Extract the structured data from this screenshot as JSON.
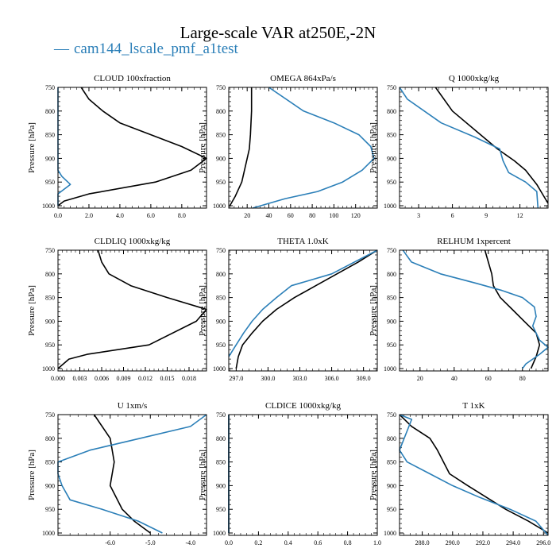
{
  "figure": {
    "title": "Large-scale VAR at250E,-2N",
    "legend": {
      "marker": "—",
      "label": "cam144_lscale_pmf_a1test"
    },
    "colors": {
      "model": "#2b7fb8",
      "obs": "#000000",
      "axis": "#000000"
    },
    "ylabel": "Pressure [hPa]",
    "yticks": [
      750,
      800,
      850,
      900,
      950,
      1000
    ],
    "ylim": [
      750,
      1005
    ]
  },
  "chart_data": [
    {
      "type": "line",
      "title": "CLOUD  100xfraction",
      "ylabel": "Pressure [hPa]",
      "xlim": [
        0,
        9.6
      ],
      "xticks": [
        "0.0",
        "2.0",
        "4.0",
        "6.0",
        "8.0"
      ],
      "xtick_values": [
        0,
        2,
        4,
        6,
        8
      ],
      "ylim": [
        750,
        1005
      ],
      "series": [
        {
          "color": "#000000",
          "points": [
            [
              1.5,
              750
            ],
            [
              2.0,
              775
            ],
            [
              2.9,
              800
            ],
            [
              4.0,
              825
            ],
            [
              6.0,
              850
            ],
            [
              8.0,
              875
            ],
            [
              9.6,
              900
            ],
            [
              8.6,
              925
            ],
            [
              6.3,
              950
            ],
            [
              2.0,
              975
            ],
            [
              0.4,
              990
            ],
            [
              0.0,
              1000
            ]
          ]
        },
        {
          "color": "#2b7fb8",
          "points": [
            [
              0.0,
              750
            ],
            [
              0.0,
              925
            ],
            [
              0.25,
              938
            ],
            [
              0.8,
              955
            ],
            [
              0.2,
              970
            ],
            [
              0.0,
              975
            ],
            [
              0.0,
              1000
            ]
          ]
        }
      ]
    },
    {
      "type": "line",
      "title": "OMEGA  864xPa/s",
      "ylabel": "Pressure [hPa]",
      "xlim": [
        3,
        140
      ],
      "xticks": [
        "20",
        "40",
        "60",
        "80",
        "100",
        "120"
      ],
      "xtick_values": [
        20,
        40,
        60,
        80,
        100,
        120
      ],
      "ylim": [
        750,
        1005
      ],
      "series": [
        {
          "color": "#000000",
          "points": [
            [
              24,
              750
            ],
            [
              24,
              800
            ],
            [
              23,
              850
            ],
            [
              22,
              880
            ],
            [
              20,
              900
            ],
            [
              15,
              950
            ],
            [
              9,
              980
            ],
            [
              4,
              1000
            ]
          ]
        },
        {
          "color": "#2b7fb8",
          "points": [
            [
              40,
              750
            ],
            [
              72,
              800
            ],
            [
              100,
              825
            ],
            [
              123,
              850
            ],
            [
              134,
              875
            ],
            [
              137,
              900
            ],
            [
              126,
              925
            ],
            [
              108,
              950
            ],
            [
              85,
              970
            ],
            [
              55,
              985
            ],
            [
              25,
              1005
            ]
          ]
        }
      ]
    },
    {
      "type": "line",
      "title": "Q  1000xkg/kg",
      "ylabel": "Pressure [hPa]",
      "xlim": [
        1.3,
        14.5
      ],
      "xticks": [
        "3",
        "6",
        "9",
        "12"
      ],
      "xtick_values": [
        3,
        6,
        9,
        12
      ],
      "ylim": [
        750,
        1005
      ],
      "series": [
        {
          "color": "#000000",
          "points": [
            [
              4.5,
              750
            ],
            [
              6.0,
              800
            ],
            [
              8.5,
              850
            ],
            [
              10.0,
              880
            ],
            [
              11.5,
              905
            ],
            [
              12.5,
              925
            ],
            [
              13.5,
              955
            ],
            [
              14.0,
              975
            ],
            [
              14.5,
              995
            ]
          ]
        },
        {
          "color": "#2b7fb8",
          "points": [
            [
              1.3,
              750
            ],
            [
              2.0,
              775
            ],
            [
              5.0,
              825
            ],
            [
              8.0,
              855
            ],
            [
              10.2,
              880
            ],
            [
              10.5,
              905
            ],
            [
              11.0,
              930
            ],
            [
              12.5,
              950
            ],
            [
              13.5,
              970
            ],
            [
              13.6,
              1005
            ]
          ]
        }
      ]
    },
    {
      "type": "line",
      "title": "CLDLIQ  1000xkg/kg",
      "ylabel": "Pressure [hPa]",
      "xlim": [
        0,
        0.0204
      ],
      "xticks": [
        "0.000",
        "0.003",
        "0.006",
        "0.009",
        "0.012",
        "0.015",
        "0.018"
      ],
      "xtick_values": [
        0,
        0.003,
        0.006,
        0.009,
        0.012,
        0.015,
        0.018
      ],
      "ylim": [
        750,
        1005
      ],
      "series": [
        {
          "color": "#000000",
          "points": [
            [
              0.0055,
              750
            ],
            [
              0.006,
              775
            ],
            [
              0.007,
              800
            ],
            [
              0.01,
              825
            ],
            [
              0.015,
              850
            ],
            [
              0.0204,
              875
            ],
            [
              0.019,
              900
            ],
            [
              0.0125,
              950
            ],
            [
              0.004,
              970
            ],
            [
              0.0015,
              980
            ],
            [
              0.0,
              1000
            ]
          ]
        }
      ]
    },
    {
      "type": "line",
      "title": "THETA  1.0xK",
      "ylabel": "Pressure [hPa]",
      "xlim": [
        296.3,
        310.3
      ],
      "xticks": [
        "297.0",
        "300.0",
        "303.0",
        "306.0",
        "309.0"
      ],
      "xtick_values": [
        297,
        300,
        303,
        306,
        309
      ],
      "ylim": [
        750,
        1005
      ],
      "series": [
        {
          "color": "#000000",
          "points": [
            [
              310.3,
              750
            ],
            [
              308.5,
              775
            ],
            [
              306.5,
              800
            ],
            [
              304.5,
              825
            ],
            [
              302.5,
              850
            ],
            [
              300.8,
              875
            ],
            [
              299.5,
              900
            ],
            [
              298.5,
              925
            ],
            [
              297.6,
              950
            ],
            [
              297.2,
              975
            ],
            [
              297.0,
              1000
            ]
          ]
        },
        {
          "color": "#2b7fb8",
          "points": [
            [
              310.3,
              750
            ],
            [
              306.0,
              800
            ],
            [
              302.2,
              825
            ],
            [
              300.8,
              850
            ],
            [
              299.5,
              875
            ],
            [
              298.5,
              900
            ],
            [
              297.7,
              925
            ],
            [
              297.0,
              950
            ],
            [
              296.3,
              975
            ]
          ]
        }
      ]
    },
    {
      "type": "line",
      "title": "RELHUM  1xpercent",
      "ylabel": "Pressure [hPa]",
      "xlim": [
        8,
        95
      ],
      "xticks": [
        "20",
        "40",
        "60",
        "80"
      ],
      "xtick_values": [
        20,
        40,
        60,
        80
      ],
      "ylim": [
        750,
        1005
      ],
      "series": [
        {
          "color": "#000000",
          "points": [
            [
              58,
              750
            ],
            [
              60,
              775
            ],
            [
              62,
              800
            ],
            [
              63,
              825
            ],
            [
              67,
              850
            ],
            [
              74,
              875
            ],
            [
              81,
              900
            ],
            [
              88,
              925
            ],
            [
              90,
              950
            ],
            [
              88,
              975
            ],
            [
              85,
              1000
            ]
          ]
        },
        {
          "color": "#2b7fb8",
          "points": [
            [
              10,
              750
            ],
            [
              15,
              775
            ],
            [
              32,
              800
            ],
            [
              53,
              820
            ],
            [
              68,
              835
            ],
            [
              80,
              850
            ],
            [
              87,
              870
            ],
            [
              88,
              890
            ],
            [
              86,
              910
            ],
            [
              88,
              925
            ],
            [
              90,
              940
            ],
            [
              95,
              955
            ],
            [
              90,
              970
            ],
            [
              82,
              990
            ],
            [
              80,
              1000
            ]
          ]
        }
      ]
    },
    {
      "type": "line",
      "title": "U  1xm/s",
      "ylabel": "Pressure [hPa]",
      "xlim": [
        -7.3,
        -3.6
      ],
      "xticks": [
        "-6.0",
        "-5.0",
        "-4.0"
      ],
      "xtick_values": [
        -6,
        -5,
        -4
      ],
      "ylim": [
        750,
        1005
      ],
      "series": [
        {
          "color": "#000000",
          "points": [
            [
              -6.4,
              750
            ],
            [
              -6.0,
              800
            ],
            [
              -5.9,
              850
            ],
            [
              -6.0,
              900
            ],
            [
              -5.7,
              950
            ],
            [
              -5.4,
              975
            ],
            [
              -5.0,
              1000
            ]
          ]
        },
        {
          "color": "#2b7fb8",
          "points": [
            [
              -3.6,
              750
            ],
            [
              -4.0,
              775
            ],
            [
              -5.5,
              805
            ],
            [
              -6.5,
              825
            ],
            [
              -7.3,
              850
            ],
            [
              -7.3,
              875
            ],
            [
              -7.2,
              900
            ],
            [
              -7.0,
              930
            ],
            [
              -6.2,
              950
            ],
            [
              -5.3,
              975
            ],
            [
              -4.7,
              1000
            ]
          ]
        }
      ]
    },
    {
      "type": "line",
      "title": "CLDICE  1000xkg/kg",
      "ylabel": "Pressure [hPa]",
      "xlim": [
        0,
        1.0
      ],
      "xticks": [
        "0.0",
        "0.2",
        "0.4",
        "0.6",
        "0.8",
        "1.0"
      ],
      "xtick_values": [
        0,
        0.2,
        0.4,
        0.6,
        0.8,
        1.0
      ],
      "ylim": [
        750,
        1005
      ],
      "series": [
        {
          "color": "#000000",
          "points": [
            [
              0.0,
              750
            ],
            [
              0.0,
              1000
            ]
          ]
        },
        {
          "color": "#2b7fb8",
          "points": [
            [
              0.0,
              750
            ],
            [
              0.0,
              1000
            ]
          ]
        }
      ]
    },
    {
      "type": "line",
      "title": "T  1xK",
      "ylabel": "Pressure [hPa]",
      "xlim": [
        286.5,
        296.3
      ],
      "xticks": [
        "288.0",
        "290.0",
        "292.0",
        "294.0",
        "296.0"
      ],
      "xtick_values": [
        288,
        290,
        292,
        294,
        296
      ],
      "ylim": [
        750,
        1005
      ],
      "series": [
        {
          "color": "#000000",
          "points": [
            [
              286.5,
              750
            ],
            [
              287.3,
              775
            ],
            [
              288.5,
              800
            ],
            [
              289.0,
              825
            ],
            [
              289.8,
              875
            ],
            [
              291.0,
              900
            ],
            [
              293.5,
              950
            ],
            [
              295.0,
              975
            ],
            [
              296.3,
              1000
            ]
          ]
        },
        {
          "color": "#2b7fb8",
          "points": [
            [
              286.5,
              750
            ],
            [
              287.3,
              760
            ],
            [
              286.5,
              825
            ],
            [
              287.0,
              850
            ],
            [
              288.5,
              875
            ],
            [
              290.0,
              900
            ],
            [
              291.8,
              925
            ],
            [
              293.8,
              950
            ],
            [
              295.5,
              975
            ],
            [
              296.3,
              1005
            ]
          ]
        }
      ]
    }
  ]
}
